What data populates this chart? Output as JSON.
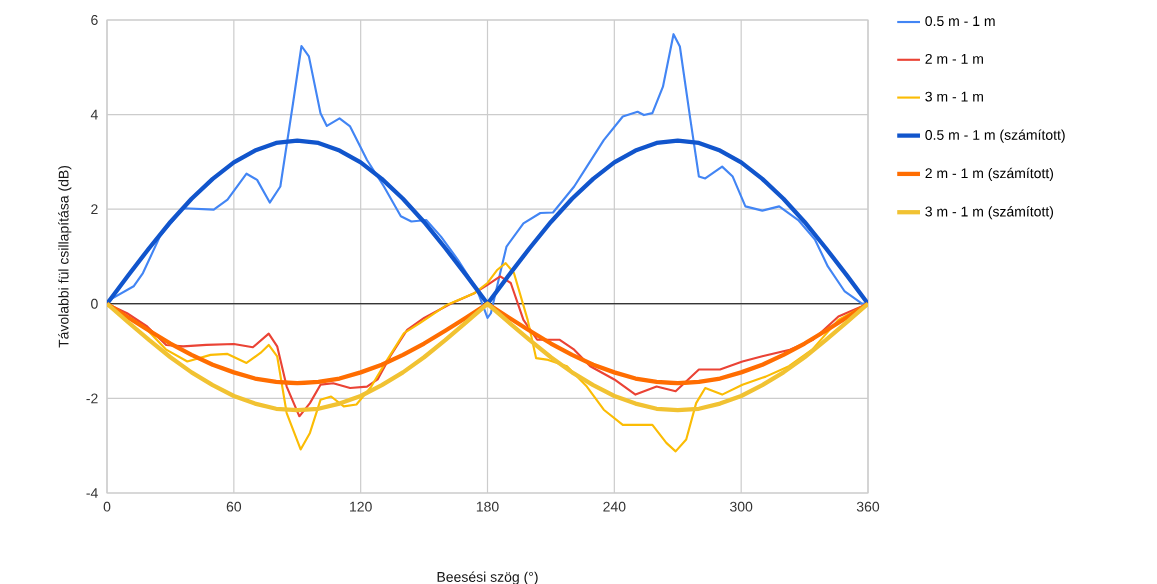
{
  "chart_data": {
    "type": "line",
    "xlabel": "Beesési szög (°)",
    "ylabel": "Távolabbi fül csillapítása (dB)",
    "xlim": [
      0,
      360
    ],
    "ylim": [
      -4,
      6
    ],
    "xticks": [
      0,
      60,
      120,
      180,
      240,
      300,
      360
    ],
    "yticks": [
      -4,
      -2,
      0,
      2,
      4,
      6
    ],
    "grid": true,
    "legend": "right",
    "marker": "none",
    "line_style": "solid",
    "series": [
      {
        "name": "0.5 m - 1 m",
        "color": "#4285f4",
        "x": [
          0,
          12.6,
          17,
          25,
          36,
          50.5,
          57,
          66,
          71,
          77,
          82,
          88,
          92,
          95.5,
          101,
          104,
          110,
          115,
          123,
          131,
          139,
          144,
          151,
          158,
          166,
          175,
          180,
          181.6,
          186,
          189,
          197,
          205,
          211,
          221,
          227,
          235,
          244,
          251,
          254,
          258,
          263,
          268,
          271,
          276,
          280,
          283,
          291,
          296,
          302,
          310,
          318,
          327,
          335,
          341,
          349,
          357,
          360
        ],
        "values": [
          0.05,
          0.37,
          0.65,
          1.42,
          2.02,
          1.99,
          2.2,
          2.75,
          2.62,
          2.14,
          2.48,
          4.24,
          5.45,
          5.23,
          4.03,
          3.76,
          3.92,
          3.75,
          3.04,
          2.48,
          1.85,
          1.74,
          1.77,
          1.42,
          0.93,
          0.3,
          -0.3,
          -0.2,
          0.65,
          1.21,
          1.7,
          1.92,
          1.93,
          2.48,
          2.9,
          3.46,
          3.96,
          4.06,
          3.99,
          4.03,
          4.59,
          5.7,
          5.44,
          3.89,
          2.69,
          2.65,
          2.9,
          2.69,
          2.06,
          1.97,
          2.06,
          1.77,
          1.35,
          0.79,
          0.26,
          0.01,
          0
        ]
      },
      {
        "name": "2 m - 1 m",
        "color": "#ea4335",
        "x": [
          0,
          9.5,
          19,
          28,
          36,
          47,
          60,
          69,
          76.5,
          80.5,
          85,
          91,
          96,
          101,
          107,
          115,
          123,
          128,
          134,
          142,
          150,
          163,
          174,
          180,
          186,
          191,
          197,
          203.5,
          214,
          221,
          228.6,
          240,
          250,
          260,
          269,
          280,
          290,
          300.6,
          310,
          323,
          334,
          346,
          360
        ],
        "values": [
          0,
          -0.2,
          -0.48,
          -0.87,
          -0.9,
          -0.87,
          -0.85,
          -0.92,
          -0.63,
          -0.9,
          -1.75,
          -2.38,
          -2.1,
          -1.71,
          -1.68,
          -1.78,
          -1.75,
          -1.6,
          -1.11,
          -0.55,
          -0.3,
          0.01,
          0.23,
          0.4,
          0.58,
          0.44,
          -0.34,
          -0.76,
          -0.76,
          -0.97,
          -1.32,
          -1.6,
          -1.92,
          -1.75,
          -1.85,
          -1.39,
          -1.39,
          -1.22,
          -1.11,
          -0.97,
          -0.76,
          -0.27,
          0
        ]
      },
      {
        "name": "3 m - 1 m",
        "color": "#fbbc04",
        "x": [
          0,
          9.5,
          19,
          28,
          38,
          49,
          57,
          66,
          72.6,
          76.5,
          80.5,
          85,
          91.6,
          96,
          101,
          106,
          112,
          118,
          125,
          132.6,
          140.5,
          148,
          161,
          174,
          180,
          184.7,
          188.6,
          192.5,
          199,
          203,
          208,
          217.6,
          227,
          235,
          244,
          254,
          258,
          264.6,
          269,
          274,
          278.7,
          283,
          291,
          300.6,
          311.6,
          322.6,
          333.6,
          346,
          360
        ],
        "values": [
          0,
          -0.27,
          -0.55,
          -0.97,
          -1.22,
          -1.08,
          -1.06,
          -1.25,
          -1.04,
          -0.87,
          -1.11,
          -2.31,
          -3.08,
          -2.73,
          -2.03,
          -1.96,
          -2.17,
          -2.13,
          -1.75,
          -1.18,
          -0.62,
          -0.41,
          -0.02,
          0.23,
          0.44,
          0.72,
          0.86,
          0.65,
          -0.34,
          -1.15,
          -1.18,
          -1.32,
          -1.75,
          -2.24,
          -2.56,
          -2.56,
          -2.56,
          -2.94,
          -3.12,
          -2.87,
          -2.1,
          -1.78,
          -1.92,
          -1.71,
          -1.54,
          -1.32,
          -0.97,
          -0.34,
          0
        ]
      },
      {
        "name": "0.5 m - 1 m (számított)",
        "color": "#1155cc",
        "x": [
          0,
          10,
          20,
          30,
          40,
          50,
          60,
          70,
          80,
          90,
          100,
          110,
          120,
          130,
          140,
          150,
          160,
          170,
          180,
          190,
          200,
          210,
          220,
          230,
          240,
          250,
          260,
          270,
          280,
          290,
          300,
          310,
          320,
          330,
          340,
          350,
          360
        ],
        "values": [
          0,
          0.6,
          1.18,
          1.73,
          2.22,
          2.64,
          2.99,
          3.24,
          3.4,
          3.45,
          3.4,
          3.24,
          2.99,
          2.64,
          2.22,
          1.73,
          1.18,
          0.6,
          0,
          0.6,
          1.18,
          1.73,
          2.22,
          2.64,
          2.99,
          3.24,
          3.4,
          3.45,
          3.4,
          3.24,
          2.99,
          2.64,
          2.22,
          1.73,
          1.18,
          0.6,
          0
        ]
      },
      {
        "name": "2 m - 1 m (számított)",
        "color": "#ff6d01",
        "x": [
          0,
          10,
          20,
          30,
          40,
          50,
          60,
          70,
          80,
          90,
          100,
          110,
          120,
          130,
          140,
          150,
          160,
          170,
          180,
          190,
          200,
          210,
          220,
          230,
          240,
          250,
          260,
          270,
          280,
          290,
          300,
          310,
          320,
          330,
          340,
          350,
          360
        ],
        "values": [
          0,
          -0.29,
          -0.57,
          -0.84,
          -1.08,
          -1.29,
          -1.45,
          -1.58,
          -1.65,
          -1.68,
          -1.65,
          -1.58,
          -1.45,
          -1.29,
          -1.08,
          -0.84,
          -0.57,
          -0.29,
          0,
          -0.29,
          -0.57,
          -0.84,
          -1.08,
          -1.29,
          -1.45,
          -1.58,
          -1.65,
          -1.68,
          -1.65,
          -1.58,
          -1.45,
          -1.29,
          -1.08,
          -0.84,
          -0.57,
          -0.29,
          0
        ]
      },
      {
        "name": "3 m - 1 m (számított)",
        "color": "#f1c232",
        "x": [
          0,
          10,
          20,
          30,
          40,
          50,
          60,
          70,
          80,
          90,
          100,
          110,
          120,
          130,
          140,
          150,
          160,
          170,
          180,
          190,
          200,
          210,
          220,
          230,
          240,
          250,
          260,
          270,
          280,
          290,
          300,
          310,
          320,
          330,
          340,
          350,
          360
        ],
        "values": [
          0,
          -0.39,
          -0.77,
          -1.13,
          -1.45,
          -1.72,
          -1.95,
          -2.11,
          -2.22,
          -2.25,
          -2.22,
          -2.11,
          -1.95,
          -1.72,
          -1.45,
          -1.13,
          -0.77,
          -0.39,
          0,
          -0.39,
          -0.77,
          -1.13,
          -1.45,
          -1.72,
          -1.95,
          -2.11,
          -2.22,
          -2.25,
          -2.22,
          -2.11,
          -1.95,
          -1.72,
          -1.45,
          -1.13,
          -0.77,
          -0.39,
          0
        ]
      }
    ]
  }
}
